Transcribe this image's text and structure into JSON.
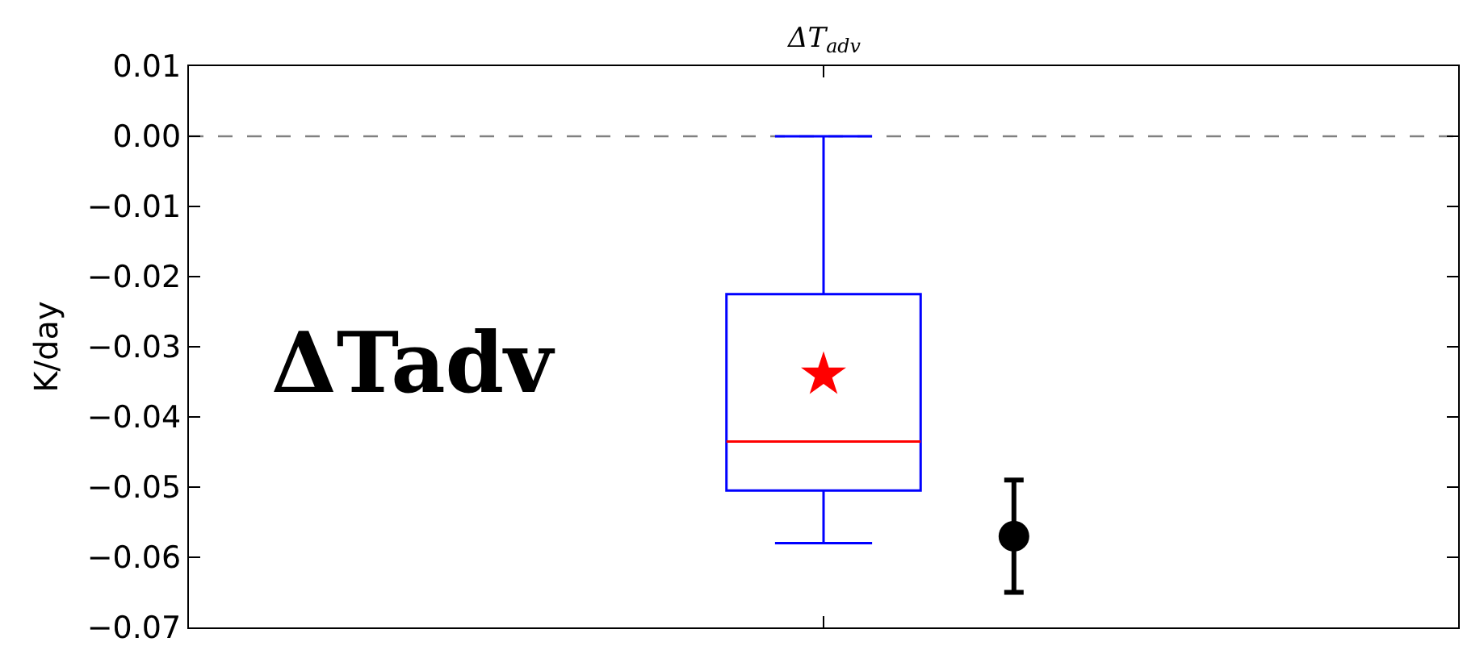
{
  "chart_data": {
    "type": "box",
    "title": "ΔT$_{adv}$",
    "ylabel": "K/day",
    "annotations": [
      "ΔTadv"
    ],
    "categories": [
      null
    ],
    "series": [
      {
        "color": "#0000ff",
        "boxes": [
          {
            "low": -0.058,
            "q1": -0.0505,
            "median": -0.0435,
            "q3": -0.0225,
            "high": 0.0,
            "mean": -0.034
          }
        ]
      },
      {
        "type": "scatter",
        "color": "#000000",
        "marker": "circle",
        "values": [
          -0.057
        ],
        "errors": [
          0.008
        ]
      }
    ],
    "ylim": [
      -0.07,
      0.01
    ],
    "yticks": [
      {
        "value": -0.07,
        "label": "−0.07"
      },
      {
        "value": -0.06,
        "label": "−0.06"
      },
      {
        "value": -0.05,
        "label": "−0.05"
      },
      {
        "value": -0.04,
        "label": "−0.04"
      },
      {
        "value": -0.03,
        "label": "−0.03"
      },
      {
        "value": -0.02,
        "label": "−0.02"
      },
      {
        "value": -0.01,
        "label": "−0.01"
      },
      {
        "value": 0.0,
        "label": "0.00"
      },
      {
        "value": 0.01,
        "label": "0.01"
      }
    ],
    "ref_lines": [
      {
        "axis": "y",
        "value": 0.0,
        "color": "#808080",
        "line_style": "dashed"
      }
    ],
    "grid": false,
    "tick_labels": "y"
  }
}
